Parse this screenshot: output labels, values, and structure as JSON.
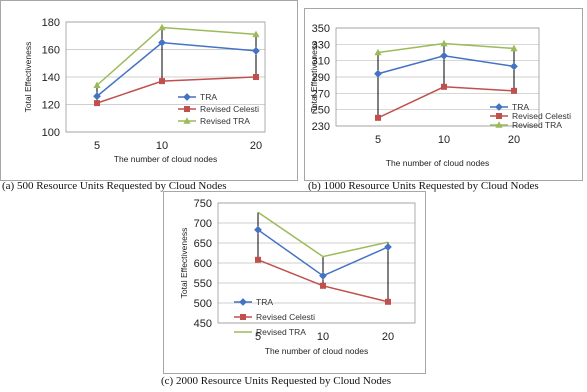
{
  "chart_data": [
    {
      "type": "line",
      "caption": "(a) 500 Resource Units Requested by Cloud Nodes",
      "categories": [
        "5",
        "10",
        "20"
      ],
      "xlabel": "The number of cloud nodes",
      "ylabel": "Total Effectiveness",
      "ylim": [
        100,
        180
      ],
      "yticks": [
        100,
        120,
        140,
        160,
        180
      ],
      "grid": true,
      "drop_lines": true,
      "legend_position": "right",
      "series": [
        {
          "name": "TRA",
          "values": [
            126,
            165,
            159
          ],
          "color": "#4472c4",
          "marker": "diamond"
        },
        {
          "name": "Revised Celesti",
          "values": [
            121,
            137,
            140
          ],
          "color": "#c0504d",
          "marker": "square"
        },
        {
          "name": "Revised TRA",
          "values": [
            134,
            176,
            171
          ],
          "color": "#9bbb59",
          "marker": "triangle"
        }
      ]
    },
    {
      "type": "line",
      "caption": "(b) 1000 Resource Units Requested by Cloud Nodes",
      "categories": [
        "5",
        "10",
        "20"
      ],
      "xlabel": "The number of cloud nodes",
      "ylabel": "Total Effectiveness",
      "ylim": [
        230,
        350
      ],
      "yticks": [
        230,
        250,
        270,
        290,
        310,
        330,
        350
      ],
      "grid": true,
      "drop_lines": true,
      "legend_position": "bottom-right",
      "series": [
        {
          "name": "TRA",
          "values": [
            294,
            316,
            303
          ],
          "color": "#4472c4",
          "marker": "diamond"
        },
        {
          "name": "Revised Celesti",
          "values": [
            240,
            278,
            273
          ],
          "color": "#c0504d",
          "marker": "square"
        },
        {
          "name": "Revised TRA",
          "values": [
            320,
            331,
            325
          ],
          "color": "#9bbb59",
          "marker": "triangle"
        }
      ]
    },
    {
      "type": "line",
      "caption": "(c) 2000 Resource Units Requested by Cloud Nodes",
      "categories": [
        "5",
        "10",
        "20"
      ],
      "xlabel": "The number of cloud nodes",
      "ylabel": "Total Effectiveness",
      "ylim": [
        450,
        750
      ],
      "yticks": [
        450,
        500,
        550,
        600,
        650,
        700,
        750
      ],
      "grid": true,
      "drop_lines": true,
      "legend_position": "bottom-left",
      "series": [
        {
          "name": "TRA",
          "values": [
            683,
            568,
            640
          ],
          "color": "#4472c4",
          "marker": "diamond"
        },
        {
          "name": "Revised Celesti",
          "values": [
            608,
            543,
            503
          ],
          "color": "#c0504d",
          "marker": "square"
        },
        {
          "name": "Revised TRA",
          "values": [
            727,
            616,
            652
          ],
          "color": "#9bbb59",
          "marker": null
        }
      ]
    }
  ]
}
